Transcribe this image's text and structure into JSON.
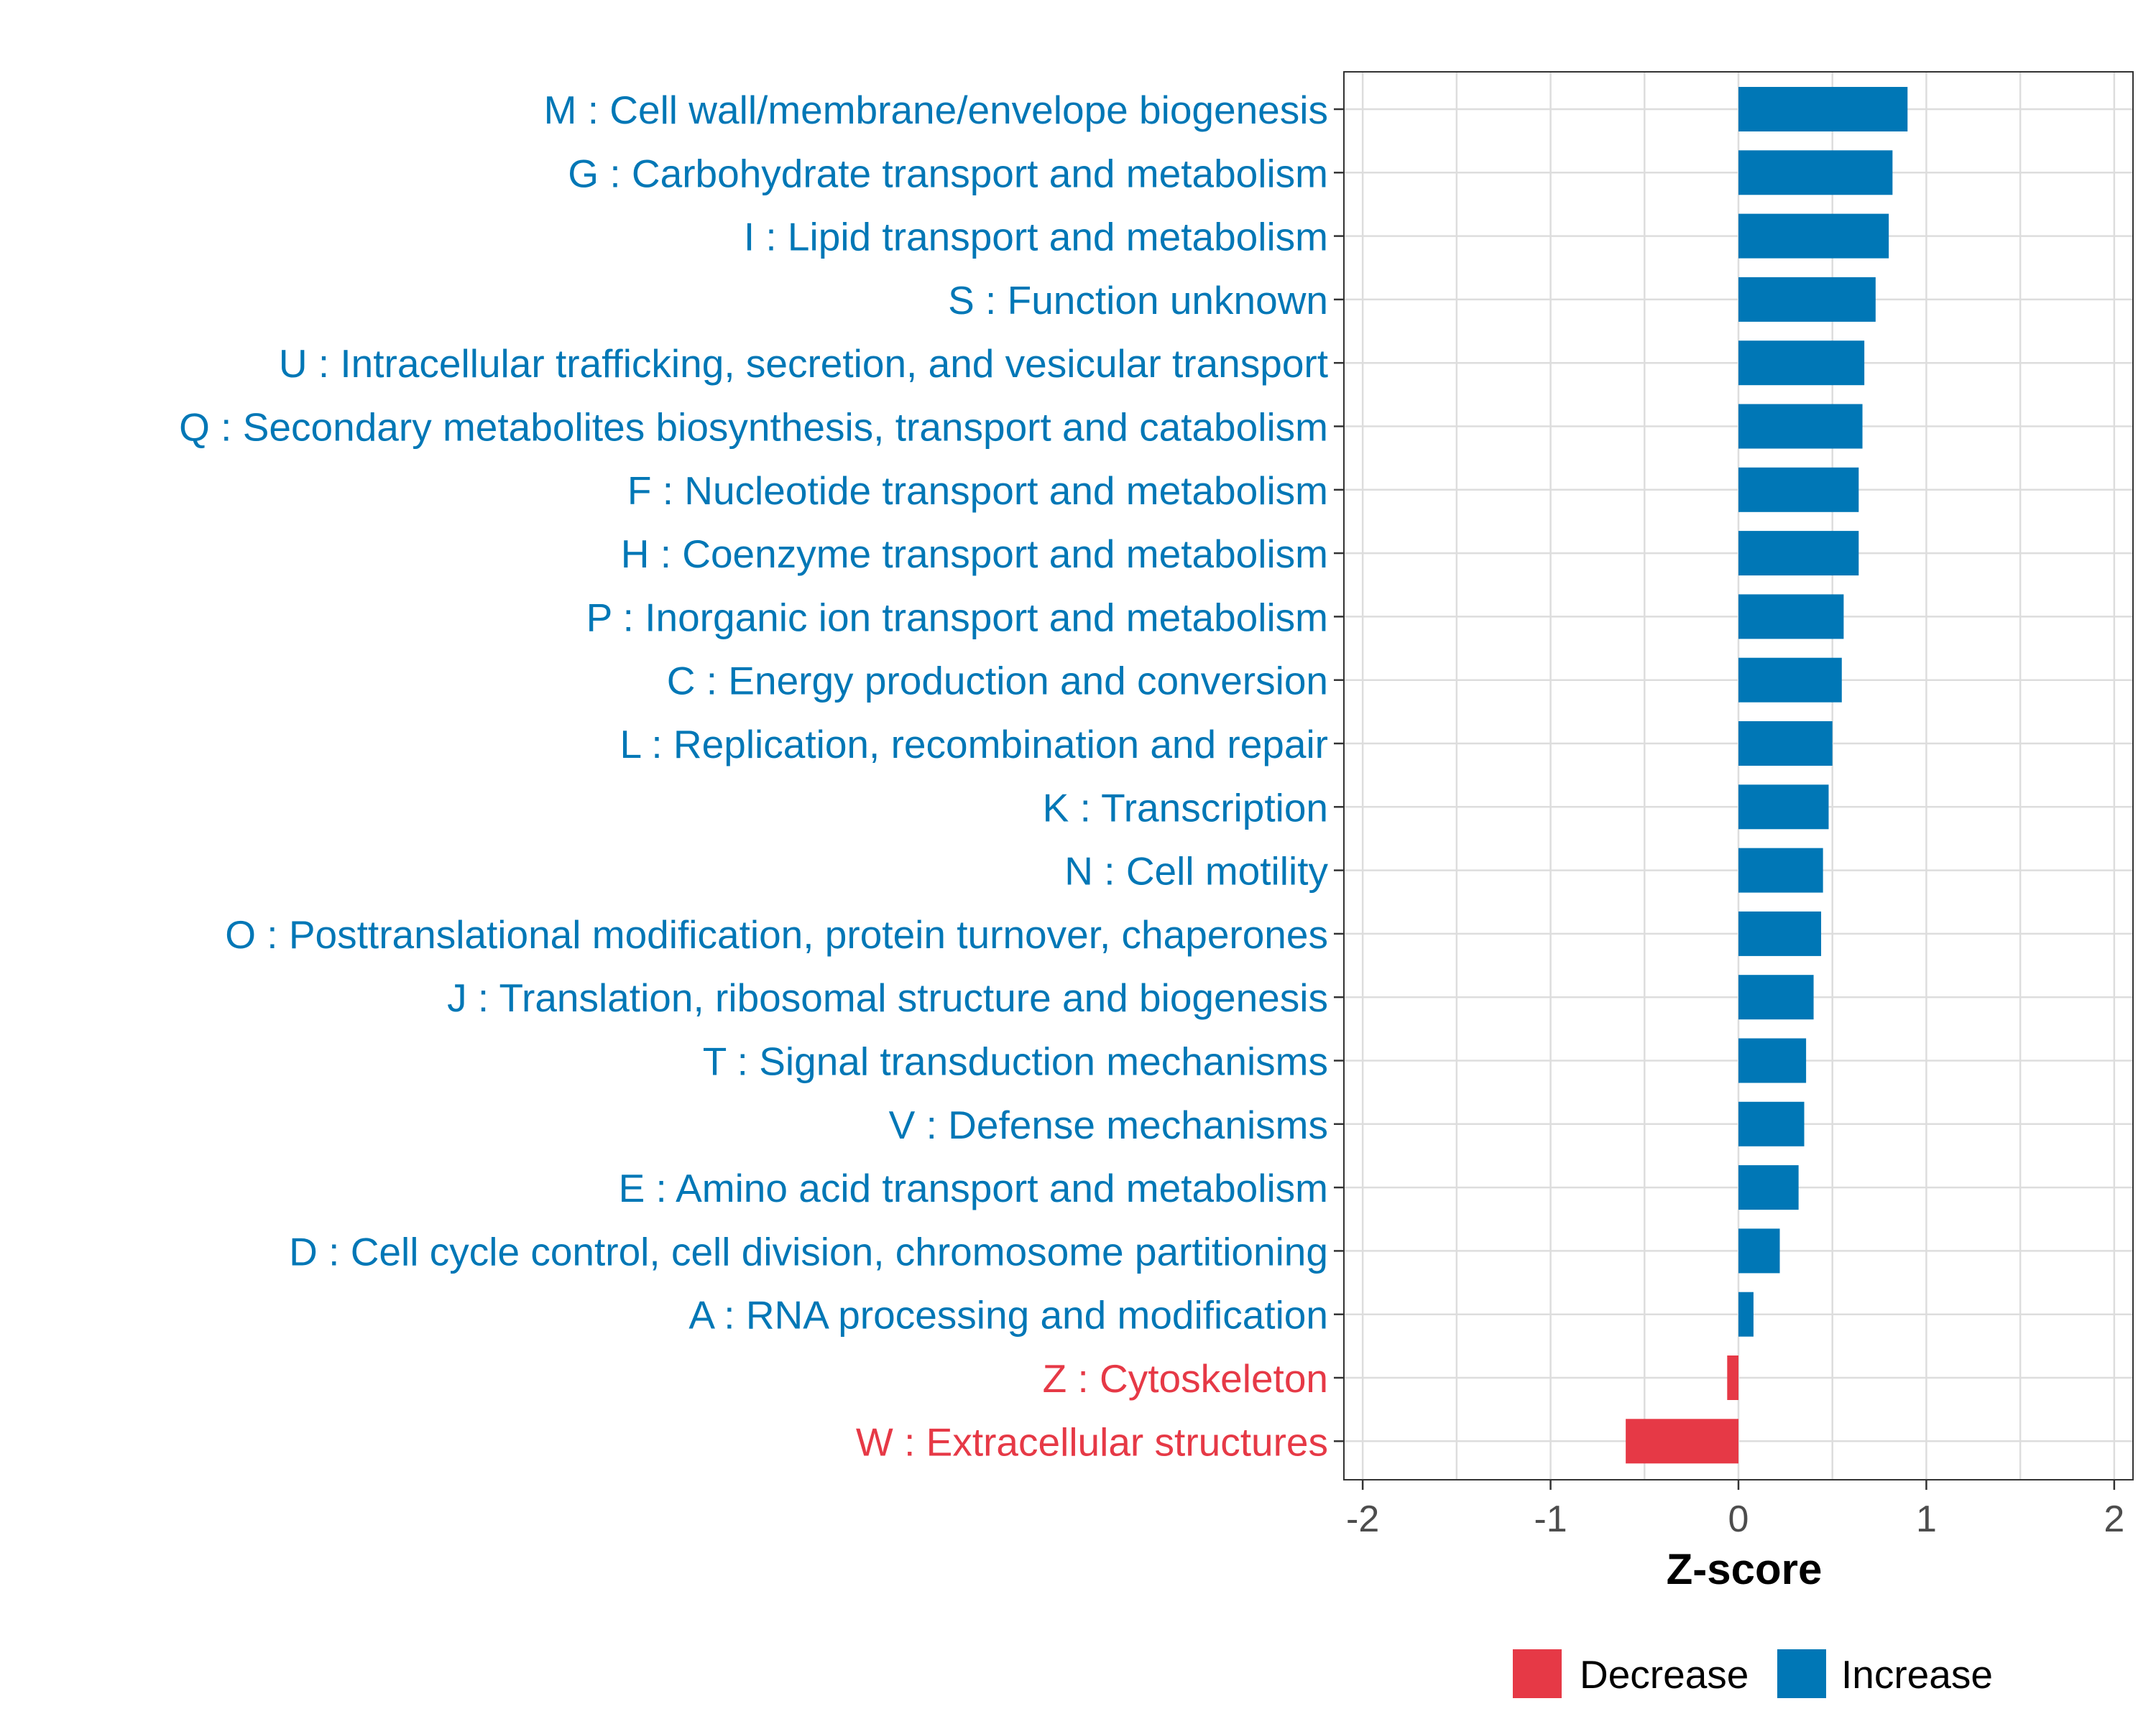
{
  "chart_data": {
    "type": "bar",
    "orientation": "horizontal",
    "xlabel": "Z-score",
    "ylabel": "",
    "xlim": [
      -2.1,
      2.1
    ],
    "xticks": [
      -2,
      -1,
      0,
      1,
      2
    ],
    "xtick_labels": [
      "-2",
      "-1",
      "0",
      "1",
      "2"
    ],
    "grid": true,
    "legend_position": "bottom",
    "legend": [
      {
        "name": "Decrease",
        "color": "#E63946"
      },
      {
        "name": "Increase",
        "color": "#0077B6"
      }
    ],
    "categories": [
      "M : Cell wall/membrane/envelope biogenesis",
      "G : Carbohydrate transport and metabolism",
      "I : Lipid transport and metabolism",
      "S : Function unknown",
      "U : Intracellular trafficking, secretion, and vesicular transport",
      "Q : Secondary metabolites biosynthesis, transport and catabolism",
      "F : Nucleotide transport and metabolism",
      "H : Coenzyme transport and metabolism",
      "P : Inorganic ion transport and metabolism",
      "C : Energy production and conversion",
      "L : Replication, recombination and repair",
      "K : Transcription",
      "N : Cell motility",
      "O : Posttranslational modification, protein turnover, chaperones",
      "J : Translation, ribosomal structure and biogenesis",
      "T : Signal transduction mechanisms",
      "V : Defense mechanisms",
      "E : Amino acid transport and metabolism",
      "D : Cell cycle control, cell division, chromosome partitioning",
      "A : RNA processing and modification",
      "Z : Cytoskeleton",
      "W : Extracellular structures"
    ],
    "values": [
      0.9,
      0.82,
      0.8,
      0.73,
      0.67,
      0.66,
      0.64,
      0.64,
      0.56,
      0.55,
      0.5,
      0.48,
      0.45,
      0.44,
      0.4,
      0.36,
      0.35,
      0.32,
      0.22,
      0.08,
      -0.06,
      -0.6
    ],
    "groups": [
      "Increase",
      "Increase",
      "Increase",
      "Increase",
      "Increase",
      "Increase",
      "Increase",
      "Increase",
      "Increase",
      "Increase",
      "Increase",
      "Increase",
      "Increase",
      "Increase",
      "Increase",
      "Increase",
      "Increase",
      "Increase",
      "Increase",
      "Increase",
      "Decrease",
      "Decrease"
    ]
  }
}
